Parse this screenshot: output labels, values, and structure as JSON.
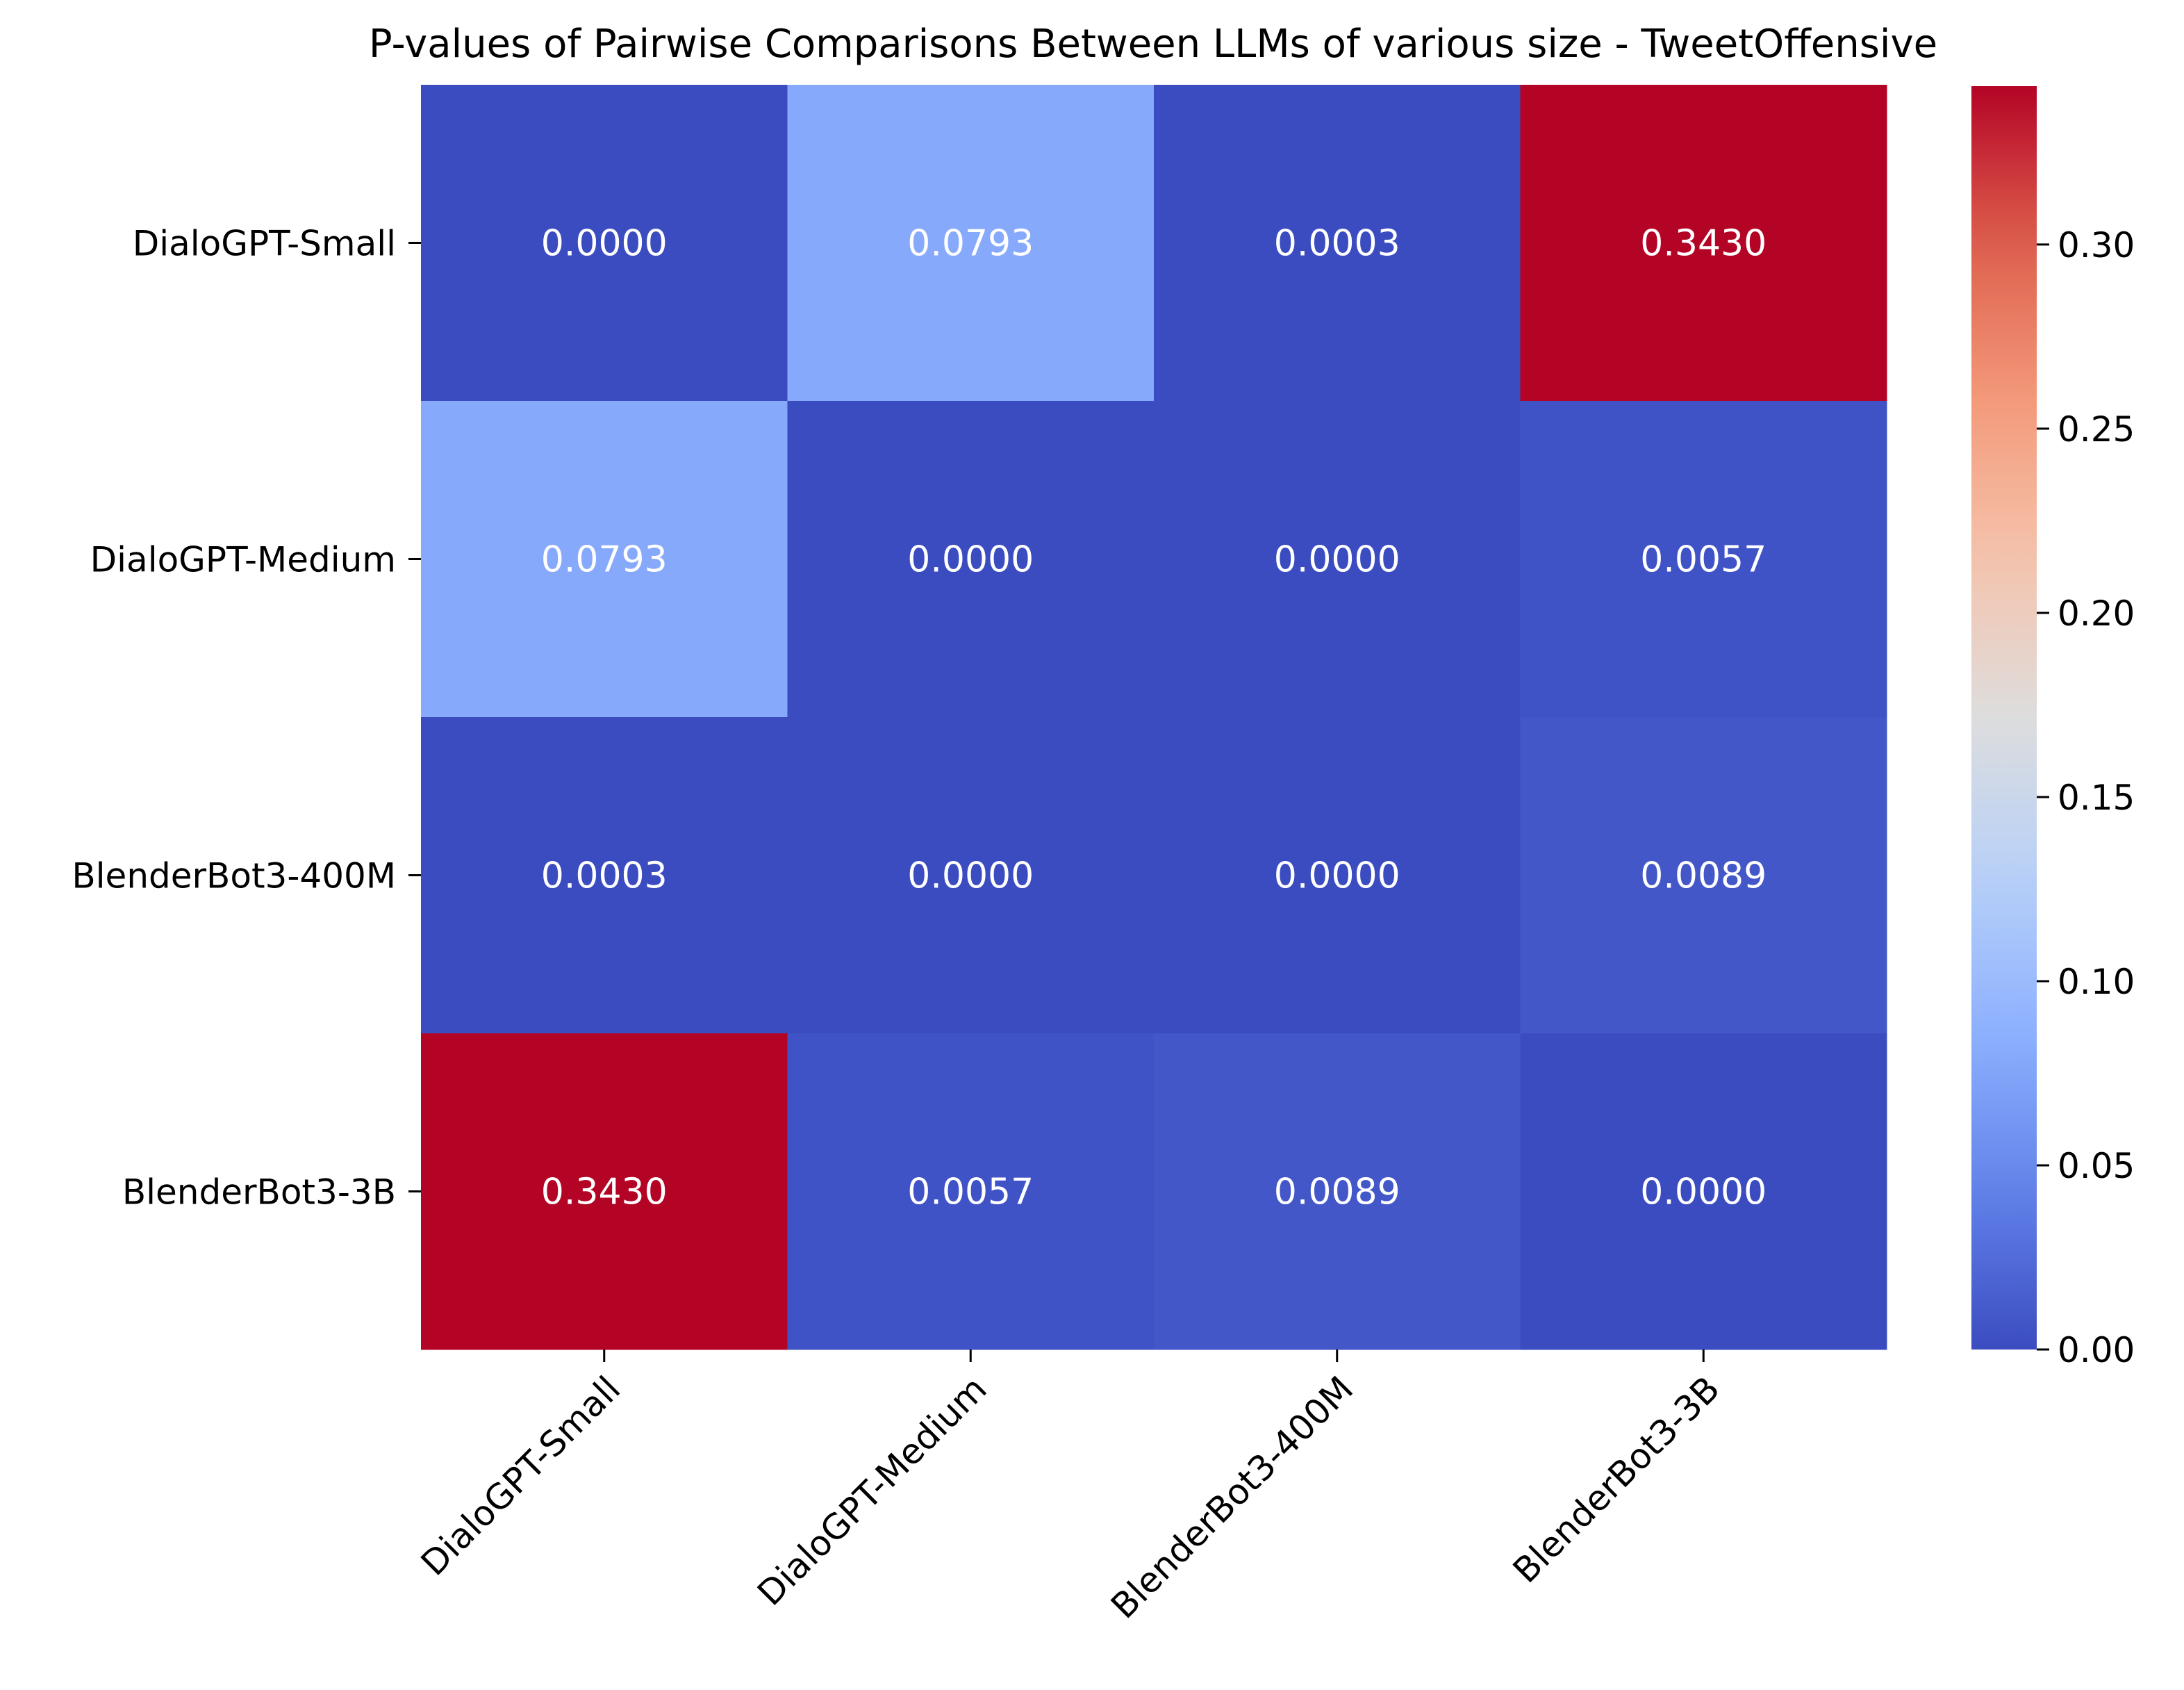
{
  "chart_data": {
    "type": "heatmap",
    "title": "P-values of Pairwise Comparisons Between LLMs of various size - TweetOffensive",
    "xlabel": "",
    "ylabel": "",
    "rows": [
      "DialoGPT-Small",
      "DialoGPT-Medium",
      "BlenderBot3-400M",
      "BlenderBot3-3B"
    ],
    "columns": [
      "DialoGPT-Small",
      "DialoGPT-Medium",
      "BlenderBot3-400M",
      "BlenderBot3-3B"
    ],
    "values": [
      [
        0.0,
        0.0793,
        0.0003,
        0.343
      ],
      [
        0.0793,
        0.0,
        0.0,
        0.0057
      ],
      [
        0.0003,
        0.0,
        0.0,
        0.0089
      ],
      [
        0.343,
        0.0057,
        0.0089,
        0.0
      ]
    ],
    "cell_labels": [
      [
        "0.0000",
        "0.0793",
        "0.0003",
        "0.3430"
      ],
      [
        "0.0793",
        "0.0000",
        "0.0000",
        "0.0057"
      ],
      [
        "0.0003",
        "0.0000",
        "0.0000",
        "0.0089"
      ],
      [
        "0.3430",
        "0.0057",
        "0.0089",
        "0.0000"
      ]
    ],
    "colormap": "coolwarm",
    "colorbar": {
      "range": [
        0,
        0.343
      ],
      "ticks": [
        0.0,
        0.05,
        0.1,
        0.15,
        0.2,
        0.25,
        0.3
      ],
      "tick_labels": [
        "0.00",
        "0.05",
        "0.10",
        "0.15",
        "0.20",
        "0.25",
        "0.30"
      ]
    },
    "grid": false
  }
}
